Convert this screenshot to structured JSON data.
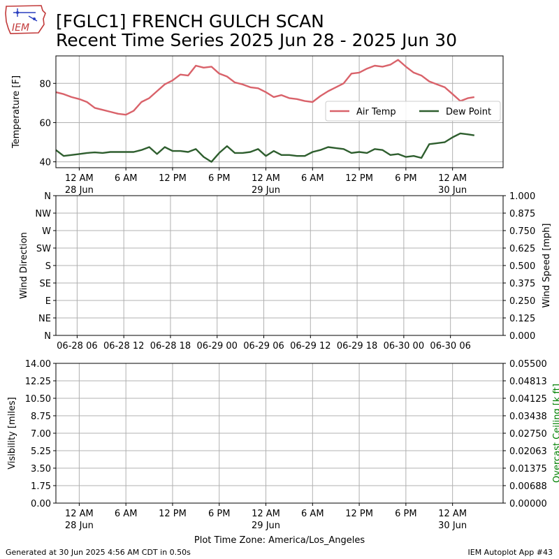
{
  "header": {
    "title_line1": "[FGLC1] FRENCH GULCH SCAN",
    "title_line2": "Recent Time Series 2025 Jun 28 - 2025 Jun 30",
    "logo_text": "IEM"
  },
  "footer": {
    "generated": "Generated at 30 Jun 2025 4:56 AM CDT in 0.50s",
    "app": "IEM Autoplot App #43"
  },
  "chart_data": [
    {
      "type": "line",
      "name": "temperature-panel",
      "ylabel": "Temperature [F]",
      "ylim": [
        37,
        94
      ],
      "yticks": [
        40,
        60,
        80
      ],
      "grid": true,
      "legend": {
        "placement": "right",
        "entries": [
          "Air Temp",
          "Dew Point"
        ]
      },
      "x_hours_from": "2025-06-27 21:00 America/Los_Angeles",
      "x_range_hours": [
        0,
        57.5
      ],
      "x_ticks": [
        {
          "hour": 3,
          "label": "12 AM",
          "sub": "28 Jun"
        },
        {
          "hour": 9,
          "label": "6 AM",
          "sub": ""
        },
        {
          "hour": 15,
          "label": "12 PM",
          "sub": ""
        },
        {
          "hour": 21,
          "label": "6 PM",
          "sub": ""
        },
        {
          "hour": 27,
          "label": "12 AM",
          "sub": "29 Jun"
        },
        {
          "hour": 33,
          "label": "6 AM",
          "sub": ""
        },
        {
          "hour": 39,
          "label": "12 PM",
          "sub": ""
        },
        {
          "hour": 45,
          "label": "6 PM",
          "sub": ""
        },
        {
          "hour": 51,
          "label": "12 AM",
          "sub": "30 Jun"
        }
      ],
      "series": [
        {
          "name": "Air Temp",
          "color": "#d9626a",
          "x": [
            0,
            1,
            2,
            3,
            4,
            5,
            6,
            7,
            8,
            9,
            10,
            11,
            12,
            13,
            14,
            15,
            16,
            17,
            18,
            19,
            20,
            21,
            22,
            23,
            24,
            25,
            26,
            27,
            28,
            29,
            30,
            31,
            32,
            33,
            34,
            35,
            36,
            37,
            38,
            39,
            40,
            41,
            42,
            43,
            44,
            45,
            46,
            47,
            48,
            49,
            50,
            51,
            52,
            53,
            53.8
          ],
          "values": [
            75.5,
            74.5,
            73,
            72,
            70.5,
            67.5,
            66.5,
            65.5,
            64.5,
            64,
            66,
            70.5,
            72.5,
            76,
            79.5,
            81.5,
            84.5,
            84,
            89,
            88,
            88.5,
            85,
            83.5,
            80.5,
            79.5,
            78,
            77.5,
            75.5,
            73,
            74,
            72.5,
            72,
            71,
            70.5,
            73.5,
            76,
            78,
            80,
            85,
            85.5,
            87.5,
            89,
            88.5,
            89.5,
            92,
            88.5,
            85.5,
            84,
            81,
            79.5,
            78,
            74.5,
            71,
            72.5,
            73
          ]
        },
        {
          "name": "Dew Point",
          "color": "#2e5e2e",
          "x": [
            0,
            1,
            2,
            3,
            4,
            5,
            6,
            7,
            8,
            9,
            10,
            11,
            12,
            13,
            14,
            15,
            16,
            17,
            18,
            19,
            20,
            21,
            22,
            23,
            24,
            25,
            26,
            27,
            28,
            29,
            30,
            31,
            32,
            33,
            34,
            35,
            36,
            37,
            38,
            39,
            40,
            41,
            42,
            43,
            44,
            45,
            46,
            47,
            48,
            49,
            50,
            51,
            52,
            53,
            53.8
          ],
          "values": [
            46,
            43,
            43.5,
            44,
            44.5,
            44.8,
            44.5,
            45,
            45,
            45,
            45,
            46,
            47.5,
            44,
            47.5,
            45.5,
            45.5,
            45,
            46.5,
            42.5,
            40,
            44.5,
            48,
            44.5,
            44.5,
            45,
            46.5,
            43,
            45.5,
            43.5,
            43.5,
            43,
            43,
            45,
            46,
            47.5,
            47,
            46.5,
            44.5,
            45,
            44.5,
            46.5,
            46,
            43.5,
            44,
            42.5,
            43,
            42,
            49,
            49.5,
            50,
            52.5,
            54.5,
            54,
            53.5
          ]
        }
      ]
    },
    {
      "type": "line",
      "name": "wind-panel",
      "ylabel": "Wind Direction",
      "y2label": "Wind Speed [mph]",
      "yticks": [
        "N",
        "NW",
        "W",
        "SW",
        "S",
        "SE",
        "E",
        "NE",
        "N"
      ],
      "y2ticks": [
        "1.000",
        "0.875",
        "0.750",
        "0.625",
        "0.500",
        "0.375",
        "0.250",
        "0.125",
        "0.000"
      ],
      "grid": true,
      "x_ticks": [
        "06-28 06",
        "06-28 12",
        "06-28 18",
        "06-29 00",
        "06-29 06",
        "06-29 12",
        "06-29 18",
        "06-30 00",
        "06-30 06"
      ],
      "series": []
    },
    {
      "type": "line",
      "name": "visibility-panel",
      "ylabel": "Visibility [miles]",
      "y2label": "Overcast Ceiling [k ft]",
      "y2label_color": "#008000",
      "yticks": [
        "14.00",
        "12.25",
        "10.50",
        "8.75",
        "7.00",
        "5.25",
        "3.50",
        "1.75",
        "0.00"
      ],
      "y2ticks": [
        "0.05500",
        "0.04813",
        "0.04125",
        "0.03438",
        "0.02750",
        "0.02063",
        "0.01375",
        "0.00688",
        "0.00000"
      ],
      "grid": true,
      "xlabel": "Plot Time Zone: America/Los_Angeles",
      "x_ticks": [
        {
          "label": "12 AM",
          "sub": "28 Jun"
        },
        {
          "label": "6 AM",
          "sub": ""
        },
        {
          "label": "12 PM",
          "sub": ""
        },
        {
          "label": "6 PM",
          "sub": ""
        },
        {
          "label": "12 AM",
          "sub": "29 Jun"
        },
        {
          "label": "6 AM",
          "sub": ""
        },
        {
          "label": "12 PM",
          "sub": ""
        },
        {
          "label": "6 PM",
          "sub": ""
        },
        {
          "label": "12 AM",
          "sub": "30 Jun"
        }
      ],
      "series": []
    }
  ]
}
